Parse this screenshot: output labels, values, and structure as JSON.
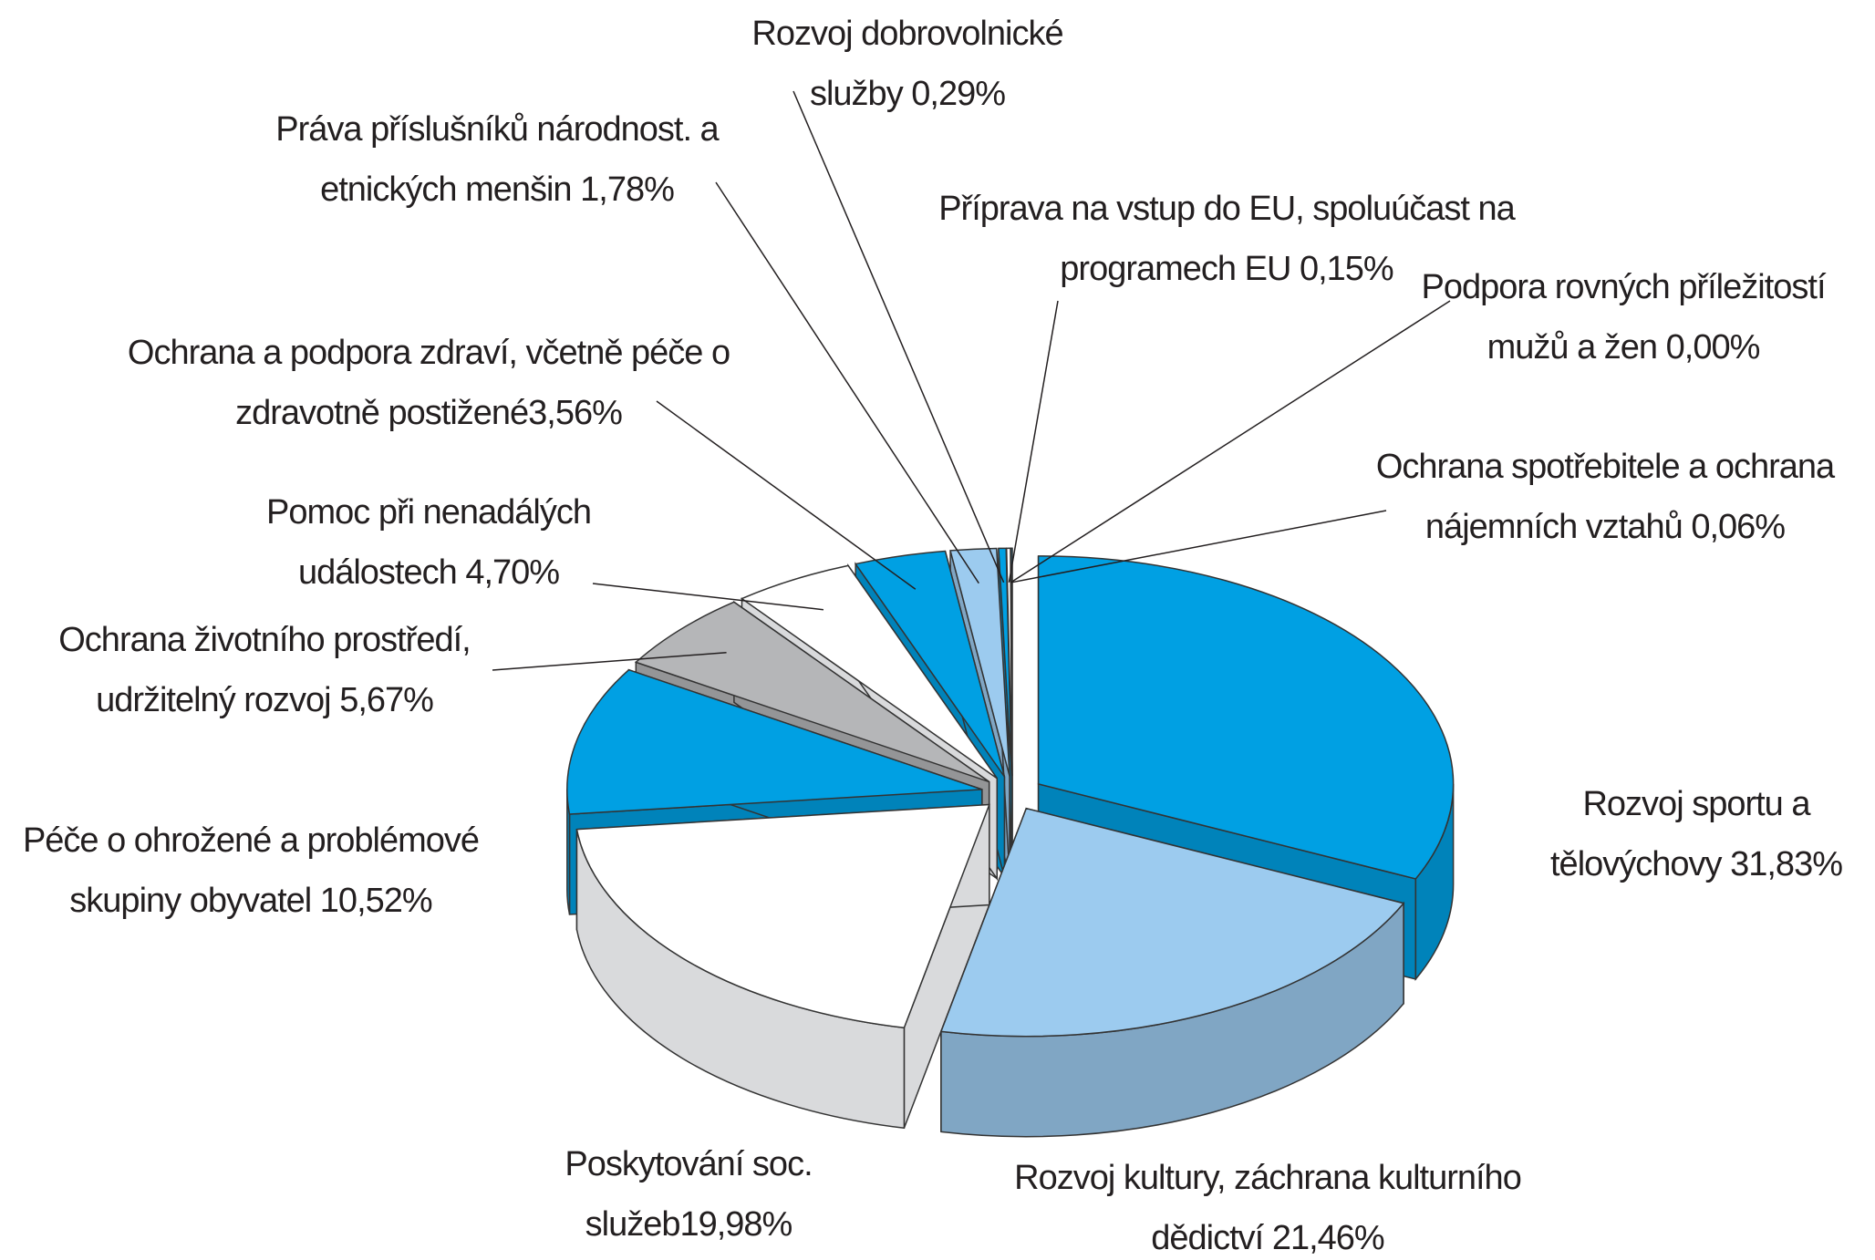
{
  "chart_data": {
    "type": "pie3d",
    "categories": [
      "Rozvoj sportu a tělovýchovy",
      "Rozvoj kultury, záchrana kulturního dědictví",
      "Poskytování soc. služeb",
      "Péče o ohrožené a problémové skupiny obyvatel",
      "Ochrana životního prostředí, udržitelný rozvoj",
      "Pomoc při nenadálých událostech",
      "Ochrana a podpora zdraví, včetně péče o zdravotně postižené",
      "Práva příslušníků národnost. a etnických menšin",
      "Rozvoj dobrovolnické služby",
      "Příprava na vstup do EU, spoluúčast na programech EU",
      "Podpora rovných příležitostí mužů a žen",
      "Ochrana spotřebitele a ochrana nájemních vztahů"
    ],
    "values": [
      31.83,
      21.46,
      19.98,
      10.52,
      5.67,
      4.7,
      3.56,
      1.78,
      0.29,
      0.15,
      0.0,
      0.06
    ],
    "value_labels": [
      "31,83%",
      "21,46%",
      "19,98%",
      "10,52%",
      "5,67%",
      "4,70%",
      "3,56%",
      "1,78%",
      "0,29%",
      "0,15%",
      "0,00%",
      "0,06%"
    ],
    "colors": [
      "#00a0e3",
      "#9ccbef",
      "#ffffff",
      "#00a0e3",
      "#b5b6b8",
      "#ffffff",
      "#00a0e3",
      "#9ccbef",
      "#00a0e3",
      "#ffffff",
      "#9ccbef",
      "#00a0e3"
    ]
  }
}
